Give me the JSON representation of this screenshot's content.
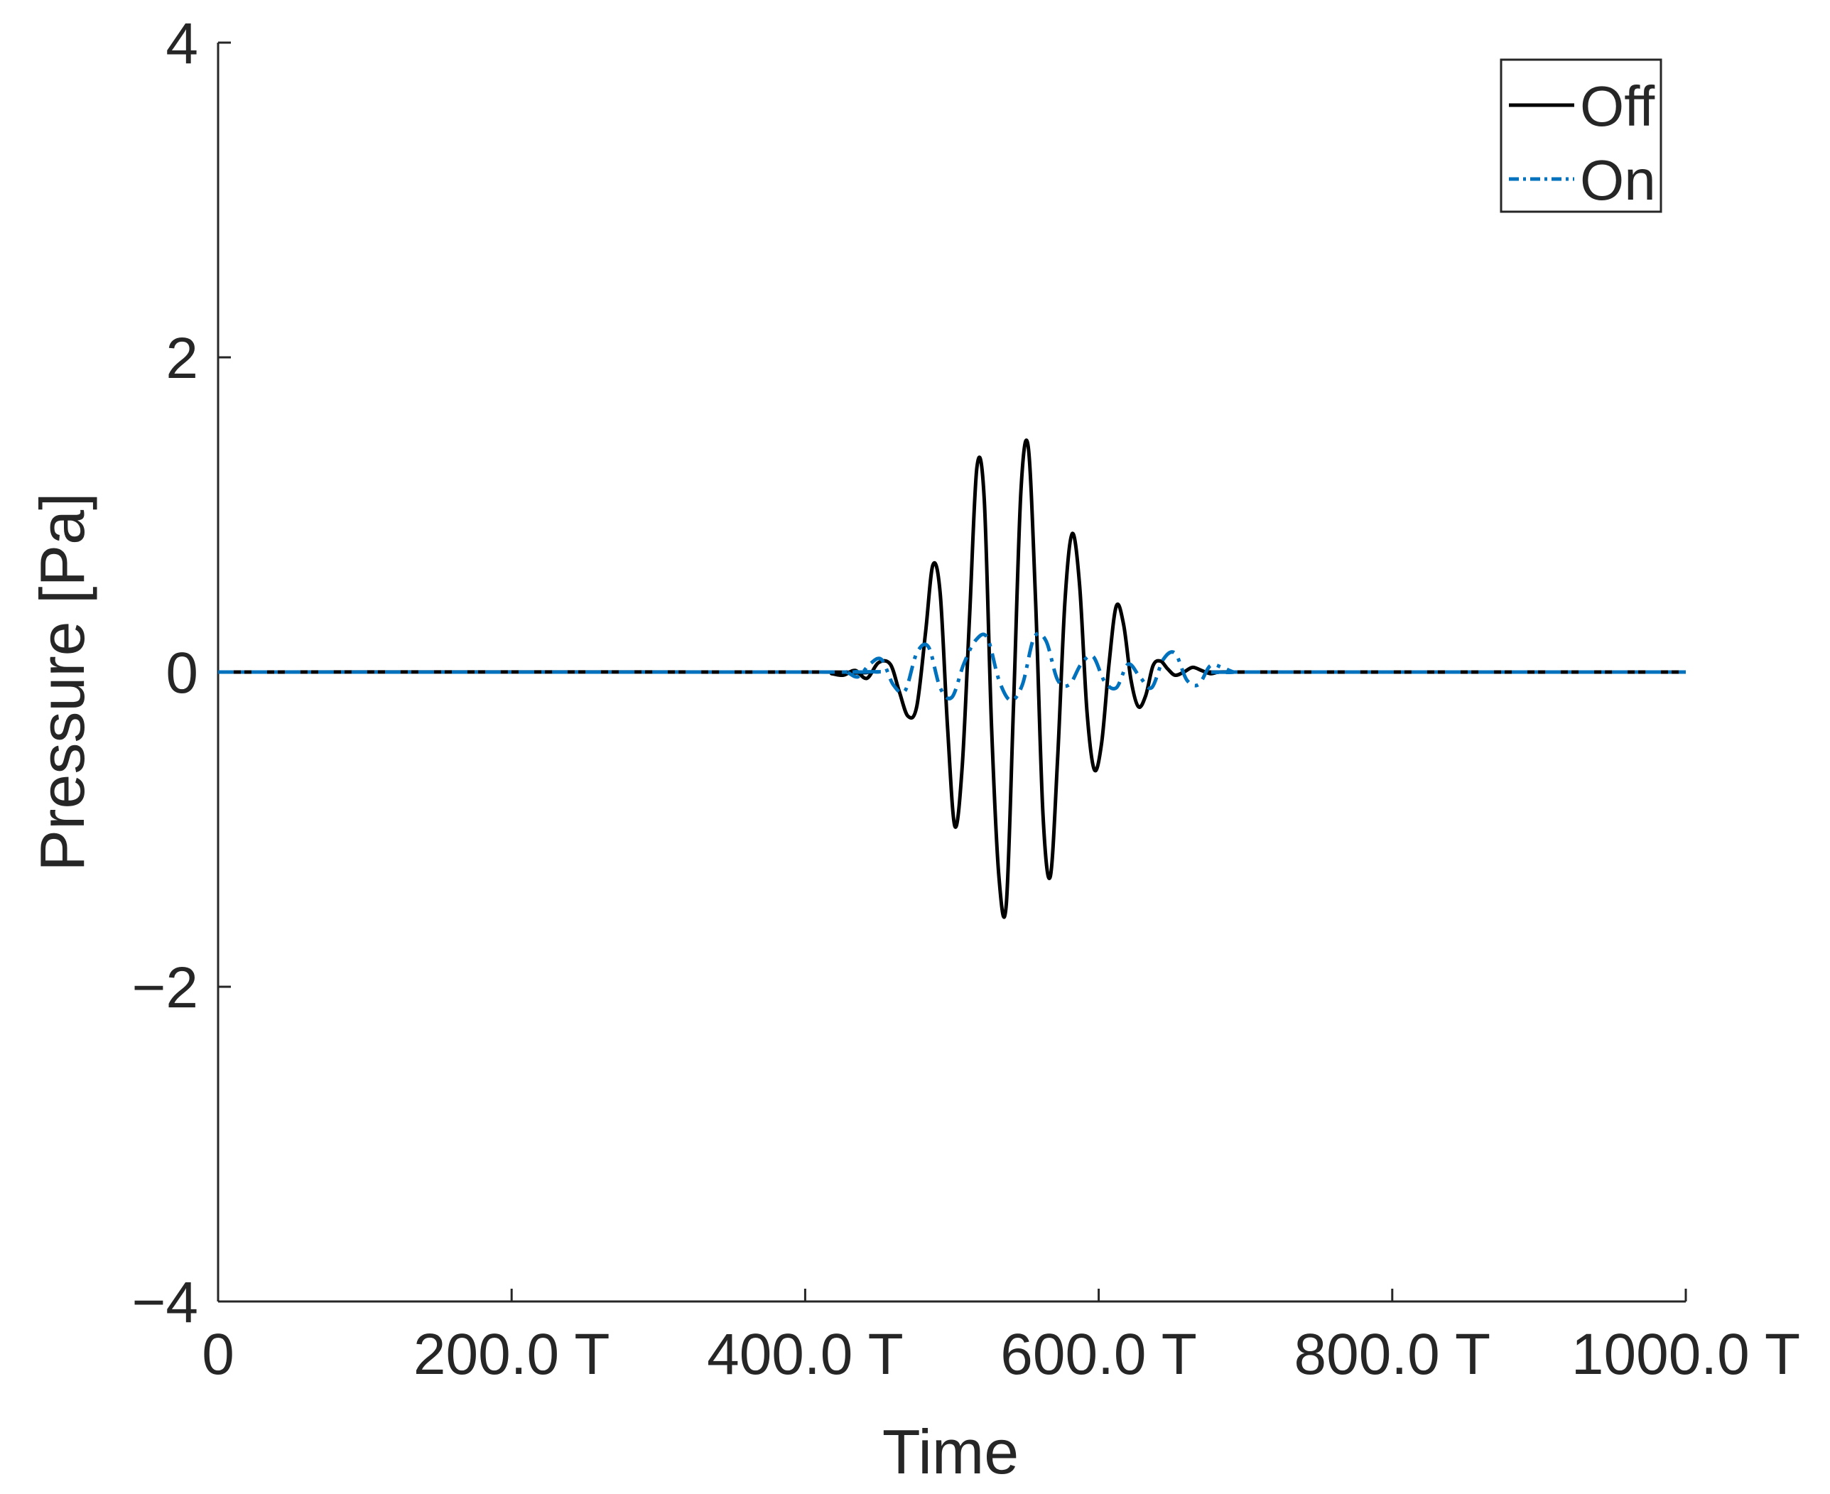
{
  "chart_data": {
    "type": "line",
    "title": "",
    "xlabel": "Time",
    "ylabel": "Pressure [Pa]",
    "xlim": [
      0,
      1000
    ],
    "ylim": [
      -4,
      4
    ],
    "x_ticks": [
      {
        "value": 0,
        "label": "0"
      },
      {
        "value": 200,
        "label": "200.0 T"
      },
      {
        "value": 400,
        "label": "400.0 T"
      },
      {
        "value": 600,
        "label": "600.0 T"
      },
      {
        "value": 800,
        "label": "800.0 T"
      },
      {
        "value": 1000,
        "label": "1000.0 T"
      }
    ],
    "y_ticks": [
      {
        "value": -4,
        "label": "−4"
      },
      {
        "value": -2,
        "label": "−2"
      },
      {
        "value": 0,
        "label": "0"
      },
      {
        "value": 2,
        "label": "2"
      },
      {
        "value": 4,
        "label": "4"
      }
    ],
    "grid": false,
    "legend": {
      "placement": "top-right",
      "entries": [
        {
          "label": "Off",
          "color": "#000000",
          "style": "solid"
        },
        {
          "label": "On",
          "color": "#0072BD",
          "style": "dash-dot"
        }
      ]
    },
    "series": [
      {
        "name": "Off",
        "color": "#000000",
        "style": "solid",
        "x": [
          0,
          410,
          418,
          426,
          434,
          442,
          450,
          458,
          464,
          470,
          476,
          482,
          487,
          492,
          497,
          502,
          507,
          512,
          517,
          522,
          527,
          532,
          537,
          542,
          547,
          552,
          557,
          562,
          567,
          572,
          577,
          582,
          587,
          592,
          597,
          602,
          607,
          612,
          617,
          622,
          627,
          632,
          637,
          642,
          647,
          652,
          658,
          664,
          670,
          676,
          682,
          690,
          700,
          1000
        ],
        "y": [
          0,
          0,
          -0.01,
          -0.02,
          0.01,
          -0.04,
          0.06,
          0.05,
          -0.12,
          -0.28,
          -0.22,
          0.25,
          0.68,
          0.5,
          -0.35,
          -0.98,
          -0.6,
          0.35,
          1.3,
          1.1,
          -0.35,
          -1.3,
          -1.48,
          -0.2,
          1.15,
          1.43,
          0.45,
          -0.9,
          -1.3,
          -0.55,
          0.45,
          0.88,
          0.55,
          -0.25,
          -0.62,
          -0.45,
          0.05,
          0.42,
          0.3,
          -0.05,
          -0.22,
          -0.15,
          0.04,
          0.07,
          0.02,
          -0.02,
          0.0,
          0.03,
          0.01,
          -0.01,
          0.0,
          0,
          0,
          0
        ]
      },
      {
        "name": "On",
        "color": "#0072BD",
        "style": "dash-dot",
        "x": [
          0,
          420,
          428,
          436,
          444,
          452,
          460,
          468,
          476,
          484,
          492,
          500,
          508,
          516,
          524,
          532,
          540,
          548,
          556,
          564,
          572,
          580,
          588,
          596,
          604,
          612,
          620,
          628,
          636,
          644,
          652,
          660,
          668,
          676,
          684,
          692,
          700,
          1000
        ],
        "y": [
          0,
          0,
          0.0,
          -0.03,
          0.05,
          0.08,
          -0.08,
          -0.12,
          0.12,
          0.16,
          -0.1,
          -0.16,
          0.05,
          0.2,
          0.22,
          -0.05,
          -0.18,
          -0.08,
          0.22,
          0.2,
          -0.05,
          -0.08,
          0.05,
          0.1,
          -0.06,
          -0.1,
          0.05,
          -0.03,
          -0.1,
          0.08,
          0.12,
          -0.05,
          -0.08,
          0.04,
          0.03,
          0.0,
          0,
          0
        ]
      }
    ]
  }
}
